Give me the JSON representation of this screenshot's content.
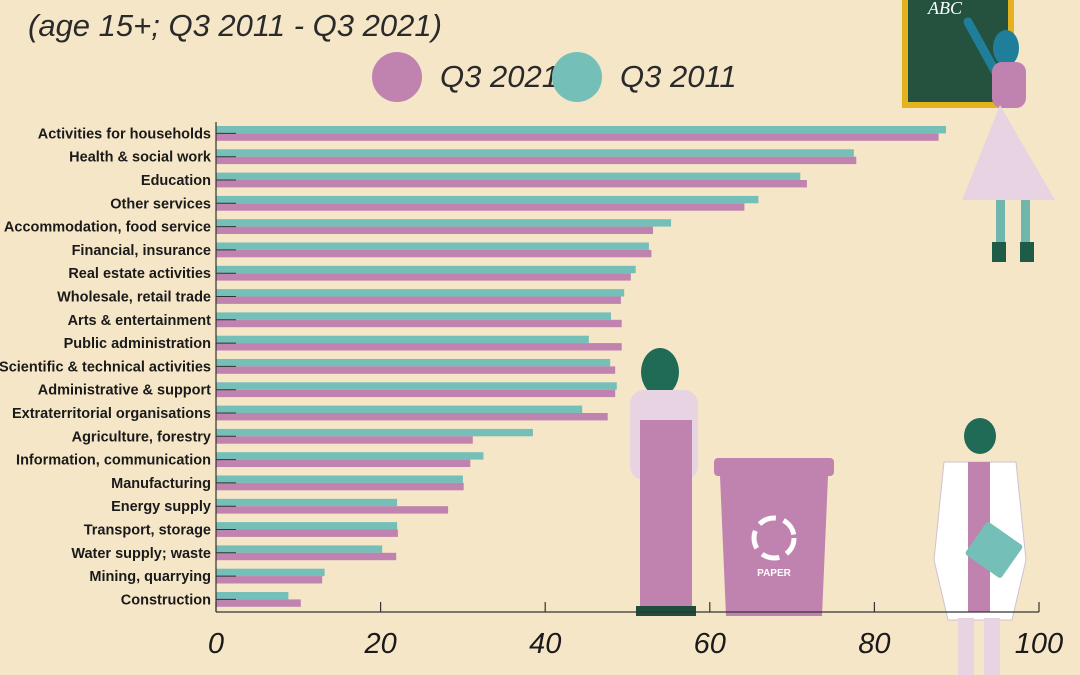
{
  "subtitle": "(age 15+; Q3 2011 - Q3 2021)",
  "legend": [
    {
      "name": "Q3 2021",
      "color": "#c083b0"
    },
    {
      "name": "Q3 2011",
      "color": "#74bfb8"
    }
  ],
  "illustrations": {
    "bin_label": "PAPER",
    "board_text": "ABC"
  },
  "chart_data": {
    "type": "bar",
    "orientation": "horizontal",
    "categories": [
      "Activities for households",
      "Health & social work",
      "Education",
      "Other services",
      "Accommodation, food service",
      "Financial, insurance",
      "Real estate activities",
      "Wholesale, retail trade",
      "Arts & entertainment",
      "Public administration",
      "Scientific & technical activities",
      "Administrative & support",
      "Extraterritorial organisations",
      "Agriculture, forestry",
      "Information, communication",
      "Manufacturing",
      "Energy supply",
      "Transport, storage",
      "Water supply; waste",
      "Mining, quarrying",
      "Construction"
    ],
    "series": [
      {
        "name": "Q3 2011",
        "color": "#74bfb8",
        "values": [
          88.7,
          77.5,
          71.0,
          65.9,
          55.3,
          52.6,
          51.0,
          49.6,
          48.0,
          45.3,
          47.9,
          48.7,
          44.5,
          38.5,
          32.5,
          30.0,
          22.0,
          22.0,
          20.2,
          13.2,
          8.8
        ]
      },
      {
        "name": "Q3 2021",
        "color": "#c083b0",
        "values": [
          87.8,
          77.8,
          71.8,
          64.2,
          53.1,
          52.9,
          50.4,
          49.2,
          49.3,
          49.3,
          48.5,
          48.5,
          47.6,
          31.2,
          30.9,
          30.1,
          28.2,
          22.1,
          21.9,
          12.9,
          10.3
        ]
      }
    ],
    "xlim": [
      0,
      100
    ],
    "xticks": [
      "0",
      "20",
      "40",
      "60",
      "80",
      "100"
    ],
    "grid": false
  }
}
